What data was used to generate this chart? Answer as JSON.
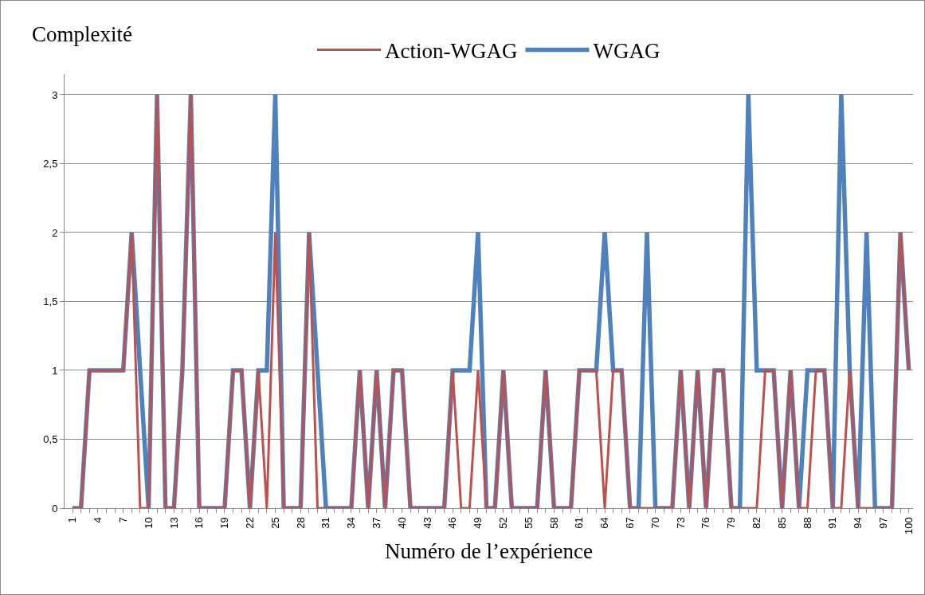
{
  "chart_data": {
    "type": "line",
    "xlabel": "Numéro de l’expérience",
    "ylabel": "Complexité",
    "categories": [
      "1",
      null,
      null,
      "4",
      null,
      null,
      "7",
      null,
      null,
      "10",
      null,
      null,
      "13",
      null,
      null,
      "16",
      null,
      null,
      "19",
      null,
      null,
      "22",
      null,
      null,
      "25",
      null,
      null,
      "28",
      null,
      null,
      "31",
      null,
      null,
      "34",
      null,
      null,
      "37",
      null,
      null,
      "40",
      null,
      null,
      "43",
      null,
      null,
      "46",
      null,
      null,
      "49",
      null,
      null,
      "52",
      null,
      null,
      "55",
      null,
      null,
      "58",
      null,
      null,
      "61",
      null,
      null,
      "64",
      null,
      null,
      "67",
      null,
      null,
      "70",
      null,
      null,
      "73",
      null,
      null,
      "76",
      null,
      null,
      "79",
      null,
      null,
      "82",
      null,
      null,
      "85",
      null,
      null,
      "88",
      null,
      null,
      "91",
      null,
      null,
      "94",
      null,
      null,
      "97",
      null,
      null,
      "100"
    ],
    "series": [
      {
        "name": "Action-WGAG",
        "color": "#c0504d",
        "values": [
          0,
          0,
          1,
          1,
          1,
          1,
          1,
          2,
          0,
          0,
          3,
          0,
          0,
          1,
          3,
          0,
          0,
          0,
          0,
          1,
          1,
          0,
          1,
          0,
          2,
          0,
          0,
          0,
          2,
          0,
          0,
          0,
          0,
          0,
          1,
          0,
          1,
          0,
          1,
          1,
          0,
          0,
          0,
          0,
          0,
          1,
          0,
          0,
          1,
          0,
          0,
          1,
          0,
          0,
          0,
          0,
          1,
          0,
          0,
          0,
          1,
          1,
          1,
          0,
          1,
          1,
          0,
          0,
          0,
          0,
          0,
          0,
          1,
          0,
          1,
          0,
          1,
          1,
          0,
          0,
          0,
          0,
          1,
          1,
          0,
          1,
          0,
          0,
          1,
          1,
          0,
          0,
          1,
          0,
          0,
          0,
          0,
          0,
          2,
          1
        ]
      },
      {
        "name": "WGAG",
        "color": "#4f81bd",
        "values": [
          0,
          0,
          1,
          1,
          1,
          1,
          1,
          2,
          1,
          0,
          3,
          0,
          0,
          1,
          3,
          0,
          0,
          0,
          0,
          1,
          1,
          0,
          1,
          1,
          3,
          0,
          0,
          0,
          2,
          1,
          0,
          0,
          0,
          0,
          1,
          0,
          1,
          0,
          1,
          1,
          0,
          0,
          0,
          0,
          0,
          1,
          1,
          1,
          2,
          0,
          0,
          1,
          0,
          0,
          0,
          0,
          1,
          0,
          0,
          0,
          1,
          1,
          1,
          2,
          1,
          1,
          0,
          0,
          2,
          0,
          0,
          0,
          1,
          0,
          1,
          0,
          1,
          1,
          0,
          0,
          3,
          1,
          1,
          1,
          0,
          1,
          0,
          1,
          1,
          1,
          0,
          3,
          1,
          0,
          2,
          0,
          0,
          0,
          2,
          1
        ]
      }
    ],
    "ylim": [
      0,
      3.15
    ],
    "yticks": [
      0,
      {
        "value": 0.5,
        "label": "0,5"
      },
      1,
      {
        "value": 1.5,
        "label": "1,5"
      },
      2,
      {
        "value": 2.5,
        "label": "2,5"
      },
      3
    ],
    "grid": "y",
    "legend": "top",
    "marker": "none",
    "line_style": "solid"
  }
}
